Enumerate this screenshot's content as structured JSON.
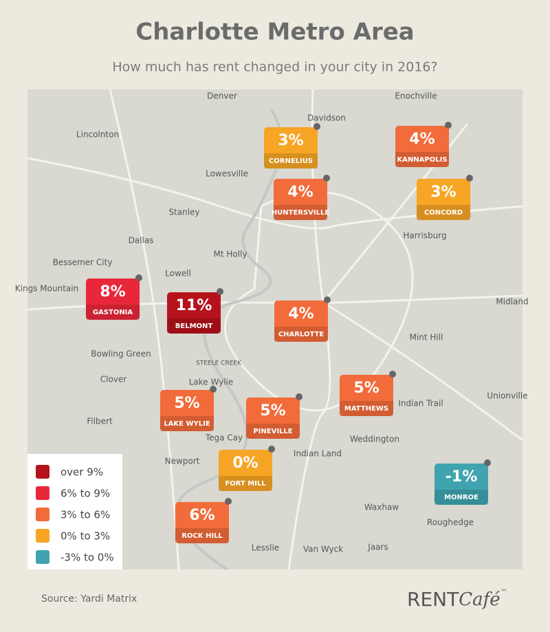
{
  "header": {
    "title": "Charlotte Metro Area",
    "subtitle": "How much has rent changed in your city in 2016?"
  },
  "cities": [
    {
      "name": "CORNELIUS",
      "change": "3%",
      "color": "#f7a525"
    },
    {
      "name": "KANNAPOLIS",
      "change": "4%",
      "color": "#f26b3a"
    },
    {
      "name": "HUNTERSVILLE",
      "change": "4%",
      "color": "#f26b3a"
    },
    {
      "name": "CONCORD",
      "change": "3%",
      "color": "#f7a525"
    },
    {
      "name": "GASTONIA",
      "change": "8%",
      "color": "#e8283a"
    },
    {
      "name": "BELMONT",
      "change": "11%",
      "color": "#b5121b"
    },
    {
      "name": "CHARLOTTE",
      "change": "4%",
      "color": "#f26b3a"
    },
    {
      "name": "MATTHEWS",
      "change": "5%",
      "color": "#f26b3a"
    },
    {
      "name": "LAKE WYLIE",
      "change": "5%",
      "color": "#f26b3a"
    },
    {
      "name": "PINEVILLE",
      "change": "5%",
      "color": "#f26b3a"
    },
    {
      "name": "FORT MILL",
      "change": "0%",
      "color": "#f7a525"
    },
    {
      "name": "MONROE",
      "change": "-1%",
      "color": "#3fa4b0"
    },
    {
      "name": "ROCK HILL",
      "change": "6%",
      "color": "#f26b3a"
    }
  ],
  "legend": [
    {
      "label": "over 9%",
      "color": "#b5121b"
    },
    {
      "label": "6% to 9%",
      "color": "#e8283a"
    },
    {
      "label": "3% to 6%",
      "color": "#f26b3a"
    },
    {
      "label": "0% to 3%",
      "color": "#f7a525"
    },
    {
      "label": "-3% to 0%",
      "color": "#3fa4b0"
    }
  ],
  "map_labels": [
    "Denver",
    "Davidson",
    "Enochville",
    "Lincolnton",
    "Lowesville",
    "Stanley",
    "Dallas",
    "Mt Holly",
    "Bessemer City",
    "Lowell",
    "Kings Mountain",
    "Harrisburg",
    "Mint Hill",
    "Midland",
    "Bowling Green",
    "Clover",
    "Indian Trail",
    "Unionville",
    "Filbert",
    "Weddington",
    "Tega Cay",
    "Newport",
    "Indian Land",
    "Waxhaw",
    "Roughedge",
    "Lesslie",
    "Van Wyck",
    "Jaars",
    "STEELE CREEK",
    "Lake Wylie"
  ],
  "footer": {
    "source": "Source: Yardi Matrix",
    "brand": "RENT",
    "brand_script": "Café",
    "trademark": "™"
  }
}
